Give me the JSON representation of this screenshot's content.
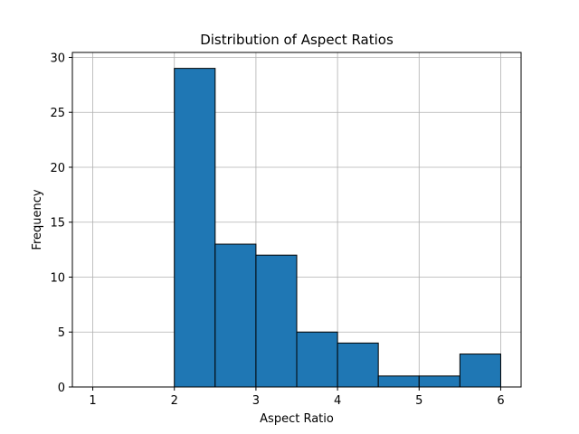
{
  "chart_data": {
    "type": "bar",
    "title": "Distribution of Aspect Ratios",
    "xlabel": "Aspect Ratio",
    "ylabel": "Frequency",
    "bins": [
      {
        "start": 1.0,
        "end": 1.5,
        "value": 0
      },
      {
        "start": 1.5,
        "end": 2.0,
        "value": 0
      },
      {
        "start": 2.0,
        "end": 2.5,
        "value": 29
      },
      {
        "start": 2.5,
        "end": 3.0,
        "value": 13
      },
      {
        "start": 3.0,
        "end": 3.5,
        "value": 12
      },
      {
        "start": 3.5,
        "end": 4.0,
        "value": 5
      },
      {
        "start": 4.0,
        "end": 4.5,
        "value": 4
      },
      {
        "start": 4.5,
        "end": 5.0,
        "value": 1
      },
      {
        "start": 5.0,
        "end": 5.5,
        "value": 1
      },
      {
        "start": 5.5,
        "end": 6.0,
        "value": 3
      }
    ],
    "xlim": [
      0.75,
      6.25
    ],
    "ylim": [
      0,
      30.45
    ],
    "xticks": [
      1,
      2,
      3,
      4,
      5,
      6
    ],
    "yticks": [
      0,
      5,
      10,
      15,
      20,
      25,
      30
    ],
    "grid": true,
    "bar_color": "#1f77b4",
    "edge_color": "#000000"
  }
}
